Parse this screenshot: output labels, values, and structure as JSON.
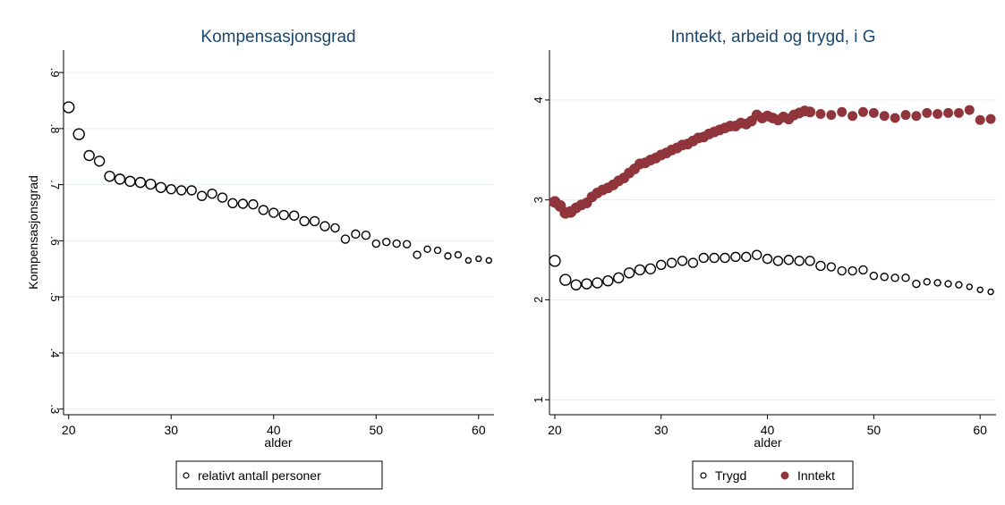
{
  "colors": {
    "title": "#1a476f",
    "text": "#000000",
    "grid": "#e6ecef",
    "axis": "#000000",
    "marker_stroke": "#000000",
    "inntekt_fill": "#90353b",
    "panel_bg": "#ffffff",
    "page_bg": "#ffffff"
  },
  "chart_data": [
    {
      "type": "scatter",
      "title": "Kompensasjonsgrad",
      "xlabel": "alder",
      "ylabel": "Kompensasjonsgrad",
      "xlim": [
        19.5,
        61.5
      ],
      "ylim": [
        0.29,
        0.94
      ],
      "xticks": [
        20,
        30,
        40,
        50,
        60
      ],
      "xtick_labels": [
        "20",
        "30",
        "40",
        "50",
        "60"
      ],
      "yticks": [
        0.3,
        0.4,
        0.5,
        0.6,
        0.7,
        0.8,
        0.9
      ],
      "ytick_labels": [
        ".3",
        ".4",
        ".5",
        ".6",
        ".7",
        ".8",
        ".9"
      ],
      "grid": true,
      "legend_position": "bottom",
      "series": [
        {
          "name": "relativt antall personer",
          "marker": "hollow-circle",
          "x": [
            20,
            21,
            22,
            23,
            24,
            25,
            26,
            27,
            28,
            29,
            30,
            31,
            32,
            33,
            34,
            35,
            36,
            37,
            38,
            39,
            40,
            41,
            42,
            43,
            44,
            45,
            46,
            47,
            48,
            49,
            50,
            51,
            52,
            53,
            54,
            55,
            56,
            57,
            58,
            59,
            60,
            61
          ],
          "y": [
            0.838,
            0.79,
            0.752,
            0.742,
            0.715,
            0.71,
            0.706,
            0.704,
            0.701,
            0.695,
            0.692,
            0.69,
            0.69,
            0.68,
            0.684,
            0.677,
            0.667,
            0.666,
            0.665,
            0.655,
            0.65,
            0.646,
            0.645,
            0.635,
            0.635,
            0.626,
            0.623,
            0.603,
            0.612,
            0.61,
            0.595,
            0.598,
            0.595,
            0.594,
            0.575,
            0.585,
            0.583,
            0.573,
            0.575,
            0.565,
            0.568,
            0.565
          ],
          "sizes": [
            6,
            6,
            5.5,
            5.5,
            5.5,
            5.5,
            5.5,
            5.5,
            5.5,
            5.5,
            5,
            5,
            5,
            5,
            5,
            5,
            5,
            5,
            5,
            5,
            5,
            5,
            5,
            5,
            5,
            5,
            4.5,
            4.5,
            4.5,
            4.5,
            4,
            4,
            4,
            4,
            4,
            3.5,
            3.5,
            3.5,
            3.5,
            3,
            3,
            3
          ]
        }
      ]
    },
    {
      "type": "scatter",
      "title": "Inntekt, arbeid og trygd, i G",
      "xlabel": "alder",
      "ylabel": "",
      "xlim": [
        19.5,
        61.5
      ],
      "ylim": [
        0.85,
        4.5
      ],
      "xticks": [
        20,
        30,
        40,
        50,
        60
      ],
      "xtick_labels": [
        "20",
        "30",
        "40",
        "50",
        "60"
      ],
      "yticks": [
        1,
        2,
        3,
        4
      ],
      "ytick_labels": [
        "1",
        "2",
        "3",
        "4"
      ],
      "grid": true,
      "legend_position": "bottom",
      "series": [
        {
          "name": "Trygd",
          "marker": "hollow-circle",
          "x": [
            20,
            21,
            22,
            23,
            24,
            25,
            26,
            27,
            28,
            29,
            30,
            31,
            32,
            33,
            34,
            35,
            36,
            37,
            38,
            39,
            40,
            41,
            42,
            43,
            44,
            45,
            46,
            47,
            48,
            49,
            50,
            51,
            52,
            53,
            54,
            55,
            56,
            57,
            58,
            59,
            60,
            61
          ],
          "y": [
            2.39,
            2.2,
            2.15,
            2.16,
            2.17,
            2.19,
            2.22,
            2.27,
            2.3,
            2.31,
            2.35,
            2.37,
            2.39,
            2.37,
            2.42,
            2.42,
            2.42,
            2.43,
            2.43,
            2.45,
            2.41,
            2.39,
            2.4,
            2.39,
            2.39,
            2.34,
            2.33,
            2.29,
            2.29,
            2.3,
            2.24,
            2.23,
            2.22,
            2.22,
            2.16,
            2.18,
            2.17,
            2.16,
            2.15,
            2.13,
            2.1,
            2.08
          ],
          "sizes": [
            6,
            6,
            5.5,
            5.5,
            5.5,
            5.5,
            5.5,
            5.5,
            5.5,
            5.5,
            5,
            5,
            5,
            5,
            5,
            5,
            5,
            5,
            5,
            5,
            5,
            5,
            5,
            5,
            5,
            5,
            4.5,
            4.5,
            4.5,
            4.5,
            4,
            4,
            4,
            4,
            4,
            3.5,
            3.5,
            3.5,
            3.5,
            3,
            3,
            3
          ]
        },
        {
          "name": "Inntekt",
          "marker": "filled-circle",
          "x": [
            20,
            20.5,
            21,
            21.5,
            22,
            22.5,
            23,
            23.5,
            24,
            24.5,
            25,
            25.5,
            26,
            26.5,
            27,
            27.5,
            28,
            28.5,
            29,
            29.5,
            30,
            30.5,
            31,
            31.5,
            32,
            32.5,
            33,
            33.5,
            34,
            34.5,
            35,
            35.5,
            36,
            36.5,
            37,
            37.5,
            38,
            38.5,
            39,
            39.5,
            40,
            40.5,
            41,
            41.5,
            42,
            42.5,
            43,
            43.5,
            44,
            45,
            46,
            47,
            48,
            49,
            50,
            51,
            52,
            53,
            54,
            55,
            56,
            57,
            58,
            59,
            60,
            61
          ],
          "y": [
            2.98,
            2.94,
            2.87,
            2.88,
            2.92,
            2.95,
            2.97,
            3.03,
            3.07,
            3.1,
            3.12,
            3.15,
            3.19,
            3.22,
            3.27,
            3.31,
            3.36,
            3.37,
            3.4,
            3.42,
            3.45,
            3.47,
            3.5,
            3.52,
            3.55,
            3.56,
            3.59,
            3.62,
            3.63,
            3.66,
            3.68,
            3.7,
            3.72,
            3.74,
            3.74,
            3.77,
            3.76,
            3.79,
            3.85,
            3.82,
            3.84,
            3.82,
            3.8,
            3.83,
            3.81,
            3.85,
            3.87,
            3.89,
            3.88,
            3.86,
            3.85,
            3.88,
            3.84,
            3.88,
            3.87,
            3.84,
            3.82,
            3.85,
            3.84,
            3.87,
            3.86,
            3.87,
            3.87,
            3.9,
            3.8,
            3.81
          ],
          "sizes": [
            6,
            6,
            6,
            6,
            5.5,
            5.5,
            5.5,
            5.5,
            5.5,
            5.5,
            5.5,
            5.5,
            5.5,
            5.5,
            5.5,
            5.5,
            5.5,
            5.5,
            5.5,
            5.5,
            5.5,
            5.5,
            5.5,
            5.5,
            5.5,
            5.5,
            5.5,
            5.5,
            5.5,
            5.5,
            5.5,
            5.5,
            5.5,
            5.5,
            5.5,
            5.5,
            5.5,
            5.5,
            5.5,
            5.5,
            5.5,
            5.5,
            5.5,
            5.5,
            5.5,
            5.5,
            5.5,
            5.5,
            5.5,
            5,
            5,
            5,
            5,
            5,
            5,
            5,
            5,
            5,
            5,
            5,
            5,
            5,
            5,
            5,
            5,
            5
          ]
        }
      ]
    }
  ]
}
